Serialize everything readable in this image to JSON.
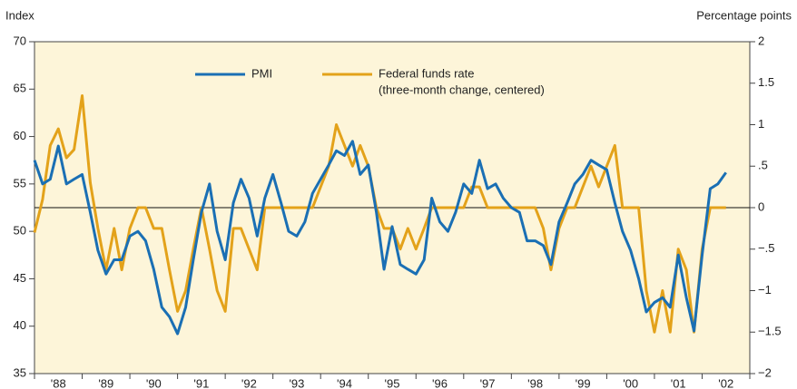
{
  "chart_data": {
    "type": "line",
    "y_axis_label": "Index",
    "y2_axis_label": "Percentage points",
    "legend_note": "(three-month change, centered)",
    "xlim": [
      1988,
      2003
    ],
    "xticks": [
      {
        "value": 1988,
        "label": "'88"
      },
      {
        "value": 1989,
        "label": "'89"
      },
      {
        "value": 1990,
        "label": "'90"
      },
      {
        "value": 1991,
        "label": "'91"
      },
      {
        "value": 1992,
        "label": "'92"
      },
      {
        "value": 1993,
        "label": "'93"
      },
      {
        "value": 1994,
        "label": "'94"
      },
      {
        "value": 1995,
        "label": "'95"
      },
      {
        "value": 1996,
        "label": "'96"
      },
      {
        "value": 1997,
        "label": "'97"
      },
      {
        "value": 1998,
        "label": "'98"
      },
      {
        "value": 1999,
        "label": "'99"
      },
      {
        "value": 2000,
        "label": "'00"
      },
      {
        "value": 2001,
        "label": "'01"
      },
      {
        "value": 2002,
        "label": "'02"
      }
    ],
    "ylim": [
      35,
      70
    ],
    "yticks": [
      35,
      40,
      45,
      50,
      55,
      60,
      65,
      70
    ],
    "y2lim": [
      -2,
      2
    ],
    "y2ticks": [
      {
        "value": -2,
        "label": "−2"
      },
      {
        "value": -1.5,
        "label": "−1.5"
      },
      {
        "value": -1,
        "label": "−1"
      },
      {
        "value": -0.5,
        "label": "−.5"
      },
      0,
      {
        "value": 0.5,
        "label": ".5"
      },
      1,
      1.5,
      2
    ],
    "x": [
      1988,
      1988.17,
      1988.33,
      1988.5,
      1988.67,
      1988.83,
      1989,
      1989.17,
      1989.33,
      1989.5,
      1989.67,
      1989.83,
      1990,
      1990.17,
      1990.33,
      1990.5,
      1990.67,
      1990.83,
      1991,
      1991.17,
      1991.33,
      1991.5,
      1991.67,
      1991.83,
      1992,
      1992.17,
      1992.33,
      1992.5,
      1992.67,
      1992.83,
      1993,
      1993.17,
      1993.33,
      1993.5,
      1993.67,
      1993.83,
      1994,
      1994.17,
      1994.33,
      1994.5,
      1994.67,
      1994.83,
      1995,
      1995.17,
      1995.33,
      1995.5,
      1995.67,
      1995.83,
      1996,
      1996.17,
      1996.33,
      1996.5,
      1996.67,
      1996.83,
      1997,
      1997.17,
      1997.33,
      1997.5,
      1997.67,
      1997.83,
      1998,
      1998.17,
      1998.33,
      1998.5,
      1998.67,
      1998.83,
      1999,
      1999.17,
      1999.33,
      1999.5,
      1999.67,
      1999.83,
      2000,
      2000.17,
      2000.33,
      2000.5,
      2000.67,
      2000.83,
      2001,
      2001.17,
      2001.33,
      2001.5,
      2001.67,
      2001.83,
      2002,
      2002.17,
      2002.33,
      2002.5
    ],
    "series": [
      {
        "name": "PMI",
        "color": "#1a6fb4",
        "values": [
          57.5,
          55,
          55.5,
          59,
          55,
          55.5,
          56,
          52,
          48,
          45.5,
          47,
          47,
          49.5,
          50,
          49,
          46,
          42,
          41,
          39.2,
          42,
          47,
          52,
          55,
          50,
          47,
          53,
          55.5,
          53.5,
          49.5,
          53.5,
          56,
          53,
          50,
          49.5,
          51,
          54,
          55.5,
          57,
          58.5,
          58,
          59.5,
          56,
          57,
          52,
          46,
          50.5,
          46.5,
          46,
          45.5,
          47,
          53.5,
          51,
          50,
          52,
          55,
          54,
          57.5,
          54.5,
          55,
          53.5,
          52.5,
          52,
          49,
          49,
          48.5,
          46.5,
          51,
          53,
          55,
          56,
          57.5,
          57,
          56.5,
          53,
          50,
          48,
          45,
          41.5,
          42.5,
          43,
          42,
          47.5,
          43,
          39.5,
          47.5,
          54.5,
          55,
          56.2
        ]
      },
      {
        "name": "Federal funds rate",
        "color": "#e3a21a",
        "axis": "y2",
        "values": [
          -0.3,
          0.1,
          0.75,
          0.95,
          0.6,
          0.7,
          1.35,
          0.3,
          -0.25,
          -0.75,
          -0.25,
          -0.75,
          -0.25,
          0,
          0,
          -0.25,
          -0.25,
          -0.75,
          -1.25,
          -1,
          -0.5,
          0,
          -0.5,
          -1,
          -1.25,
          -0.25,
          -0.25,
          -0.5,
          -0.75,
          0,
          0,
          0,
          0,
          0,
          0,
          0,
          0.25,
          0.5,
          1,
          0.75,
          0.5,
          0.75,
          0.5,
          0,
          -0.25,
          -0.25,
          -0.5,
          -0.25,
          -0.5,
          -0.25,
          0,
          0,
          0,
          0,
          0,
          0.25,
          0.25,
          0,
          0,
          0,
          0,
          0,
          0,
          0,
          -0.25,
          -0.75,
          -0.25,
          0,
          0,
          0.25,
          0.5,
          0.25,
          0.5,
          0.75,
          0,
          0,
          0,
          -1,
          -1.5,
          -1,
          -1.5,
          -0.5,
          -0.75,
          -1.5,
          -0.5,
          0,
          0,
          0
        ]
      }
    ]
  }
}
